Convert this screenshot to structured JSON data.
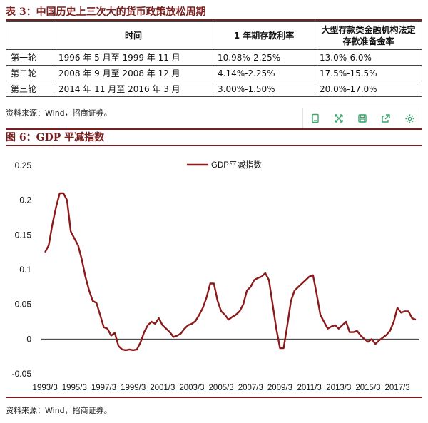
{
  "table3": {
    "title": "表 3：中国历史上三次大的货币政策放松周期",
    "headers": [
      "",
      "时间",
      "1 年期存款利率",
      "大型存款类金融机构法定存款准备金率"
    ],
    "rows": [
      [
        "第一轮",
        "1996 年 5 月至 1999 年 11 月",
        "10.98%-2.25%",
        "13.0%-6.0%"
      ],
      [
        "第二轮",
        "2008 年 9 月至 2008 年 12 月",
        "4.14%-2.25%",
        "17.5%-15.5%"
      ],
      [
        "第三轮",
        "2014 年 11 月至 2016 年 3 月",
        "3.00%-1.50%",
        "20.0%-17.0%"
      ]
    ],
    "source": "资料来源：Wind，招商证券。"
  },
  "toolbar": {
    "icons": [
      "copy-icon",
      "expand-icon",
      "save-icon",
      "share-icon",
      "settings-icon"
    ]
  },
  "figure6": {
    "title": "图 6：GDP 平减指数",
    "source": "资料来源：Wind，招商证券。"
  },
  "colors": {
    "accent": "#7a1f1f",
    "series": "#8b1a1a",
    "toolbar": "#3aa76d"
  },
  "chart_data": {
    "type": "line",
    "title": "图 6：GDP 平减指数",
    "xlabel": "",
    "ylabel": "",
    "ylim": [
      -0.05,
      0.25
    ],
    "yticks": [
      -0.05,
      0,
      0.05,
      0.1,
      0.15,
      0.2,
      0.25
    ],
    "ytick_labels": [
      "-0.05",
      "0",
      "0.05",
      "0.1",
      "0.15",
      "0.2",
      "0.25"
    ],
    "xlim": [
      1993,
      2018.75
    ],
    "xtick_labels": [
      "1993/3",
      "1995/3",
      "1997/3",
      "1999/3",
      "2001/3",
      "2003/3",
      "2005/3",
      "2007/3",
      "2009/3",
      "2011/3",
      "2013/3",
      "2015/3",
      "2017/3"
    ],
    "xticks": [
      1993.25,
      1995.25,
      1997.25,
      1999.25,
      2001.25,
      2003.25,
      2005.25,
      2007.25,
      2009.25,
      2011.25,
      2013.25,
      2015.25,
      2017.25
    ],
    "legend_position": "top-center",
    "grid": false,
    "series": [
      {
        "name": "GDP平减指数",
        "x": [
          1993.25,
          1993.5,
          1993.75,
          1994.0,
          1994.25,
          1994.5,
          1994.75,
          1995.0,
          1995.25,
          1995.5,
          1995.75,
          1996.0,
          1996.25,
          1996.5,
          1996.75,
          1997.0,
          1997.25,
          1997.5,
          1997.75,
          1998.0,
          1998.25,
          1998.5,
          1998.75,
          1999.0,
          1999.25,
          1999.5,
          1999.75,
          2000.0,
          2000.25,
          2000.5,
          2000.75,
          2001.0,
          2001.25,
          2001.5,
          2001.75,
          2002.0,
          2002.25,
          2002.5,
          2002.75,
          2003.0,
          2003.25,
          2003.5,
          2003.75,
          2004.0,
          2004.25,
          2004.5,
          2004.75,
          2005.0,
          2005.25,
          2005.5,
          2005.75,
          2006.0,
          2006.25,
          2006.5,
          2006.75,
          2007.0,
          2007.25,
          2007.5,
          2007.75,
          2008.0,
          2008.25,
          2008.5,
          2008.75,
          2009.0,
          2009.25,
          2009.5,
          2009.75,
          2010.0,
          2010.25,
          2010.5,
          2010.75,
          2011.0,
          2011.25,
          2011.5,
          2011.75,
          2012.0,
          2012.25,
          2012.5,
          2012.75,
          2013.0,
          2013.25,
          2013.5,
          2013.75,
          2014.0,
          2014.25,
          2014.5,
          2014.75,
          2015.0,
          2015.25,
          2015.5,
          2015.75,
          2016.0,
          2016.25,
          2016.5,
          2016.75,
          2017.0,
          2017.25,
          2017.5,
          2017.75,
          2018.0,
          2018.25,
          2018.5
        ],
        "y": [
          0.125,
          0.135,
          0.165,
          0.19,
          0.21,
          0.21,
          0.2,
          0.155,
          0.145,
          0.135,
          0.115,
          0.09,
          0.07,
          0.055,
          0.052,
          0.035,
          0.017,
          0.015,
          0.005,
          0.009,
          -0.01,
          -0.015,
          -0.016,
          -0.015,
          -0.016,
          -0.015,
          -0.005,
          0.01,
          0.02,
          0.025,
          0.022,
          0.03,
          0.02,
          0.015,
          0.01,
          0.003,
          0.005,
          0.008,
          0.015,
          0.02,
          0.022,
          0.026,
          0.035,
          0.045,
          0.06,
          0.08,
          0.08,
          0.055,
          0.04,
          0.035,
          0.028,
          0.032,
          0.035,
          0.04,
          0.05,
          0.07,
          0.075,
          0.085,
          0.088,
          0.09,
          0.095,
          0.085,
          0.05,
          0.015,
          -0.013,
          -0.013,
          0.02,
          0.055,
          0.07,
          0.075,
          0.08,
          0.085,
          0.09,
          0.092,
          0.065,
          0.035,
          0.025,
          0.015,
          0.018,
          0.02,
          0.015,
          0.02,
          0.025,
          0.01,
          0.01,
          0.012,
          0.005,
          0.0,
          -0.004,
          0.0,
          -0.007,
          -0.002,
          0.002,
          0.006,
          0.012,
          0.025,
          0.045,
          0.038,
          0.04,
          0.04,
          0.03,
          0.028
        ]
      }
    ]
  }
}
